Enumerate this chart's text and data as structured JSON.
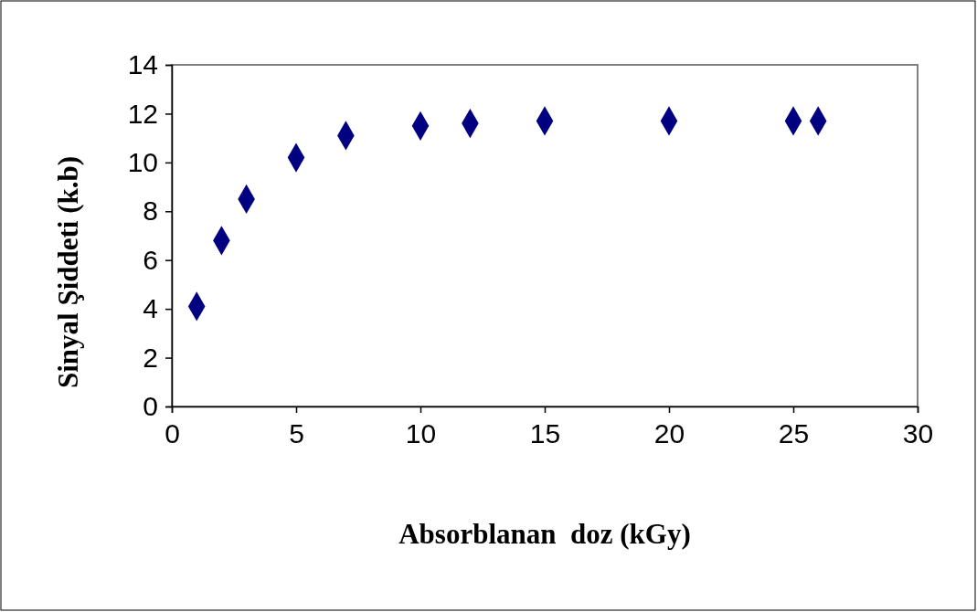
{
  "chart_data": {
    "type": "scatter",
    "xlabel": "Absorblanan  doz (kGy)",
    "ylabel": "Sinyal Şiddeti (k.b)",
    "x": [
      1,
      2,
      3,
      5,
      7,
      10,
      12,
      15,
      20,
      25,
      26
    ],
    "series": [
      {
        "color": "#000080",
        "values": [
          4.1,
          6.8,
          8.5,
          10.2,
          11.1,
          11.5,
          11.6,
          11.7,
          11.7,
          11.7,
          11.7
        ]
      }
    ],
    "xlim": [
      0,
      30
    ],
    "xticks": [
      0,
      5,
      10,
      15,
      20,
      25,
      30
    ],
    "ylim": [
      0,
      14
    ],
    "yticks": [
      0,
      2,
      4,
      6,
      8,
      10,
      12,
      14
    ],
    "marker": "diamond"
  }
}
